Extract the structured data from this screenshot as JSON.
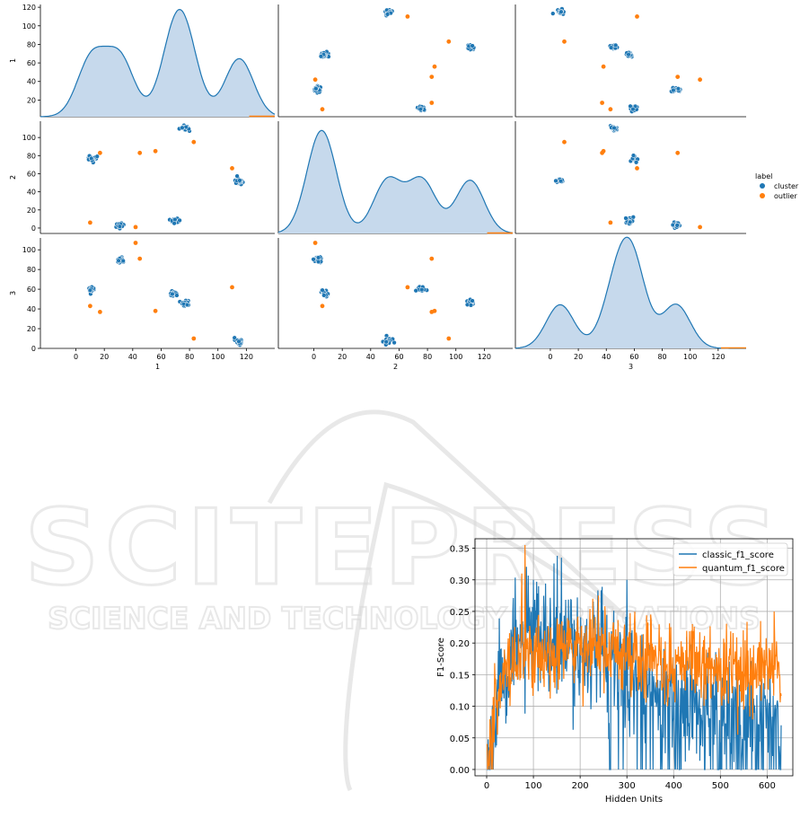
{
  "watermark": {
    "line1": "SCITEPRESS",
    "line2": "SCIENCE AND TECHNOLOGY PUBLICATIONS"
  },
  "colors": {
    "cluster": "#1f77b4",
    "outlier": "#ff7f0e",
    "kde_fill": "#c6d9ec",
    "kde_line": "#1f77b4",
    "classic": "#1f77b4",
    "quantum": "#ff7f0e"
  },
  "chart_data": [
    {
      "type": "scatter",
      "title": "",
      "variables": [
        "1",
        "2",
        "3"
      ],
      "ticks": [
        0,
        20,
        40,
        60,
        80,
        100,
        120
      ],
      "yticks_row1": [
        20,
        40,
        60,
        80,
        100,
        120
      ],
      "xlim": [
        -25,
        140
      ],
      "legend": {
        "title": "label",
        "entries": [
          "cluster",
          "outlier"
        ],
        "placement": "right"
      },
      "clusters": [
        {
          "v1": 11,
          "v2": 76,
          "v3": 60
        },
        {
          "v1": 31,
          "v2": 3,
          "v3": 90
        },
        {
          "v1": 69,
          "v2": 8,
          "v3": 56
        },
        {
          "v1": 77,
          "v2": 110,
          "v3": 46
        },
        {
          "v1": 115,
          "v2": 52,
          "v3": 7
        }
      ],
      "outliers": [
        {
          "v1": 10,
          "v2": 6,
          "v3": 43
        },
        {
          "v1": 17,
          "v2": 83,
          "v3": 37
        },
        {
          "v1": 42,
          "v2": 1,
          "v3": 107
        },
        {
          "v1": 45,
          "v2": 83,
          "v3": 91
        },
        {
          "v1": 56,
          "v2": 85,
          "v3": 38
        },
        {
          "v1": 83,
          "v2": 95,
          "v3": 10
        },
        {
          "v1": 110,
          "v2": 66,
          "v3": 62
        }
      ],
      "kde_peaks": [
        120,
        110,
        115
      ]
    },
    {
      "type": "line",
      "title": "",
      "xlabel": "Hidden Units",
      "ylabel": "F1-Score",
      "xlim": [
        -25,
        655
      ],
      "ylim": [
        -0.01,
        0.365
      ],
      "xticks": [
        0,
        100,
        200,
        300,
        400,
        500,
        600
      ],
      "yticks": [
        0.0,
        0.05,
        0.1,
        0.15,
        0.2,
        0.25,
        0.3,
        0.35
      ],
      "grid": true,
      "legend": {
        "placement": "top-right"
      },
      "x_start": 1,
      "x_end": 630,
      "series": [
        {
          "name": "classic_f1_score",
          "profile": [
            [
              0,
              0
            ],
            [
              8,
              0.05
            ],
            [
              30,
              0.16
            ],
            [
              80,
              0.2
            ],
            [
              150,
              0.2
            ],
            [
              220,
              0.19
            ],
            [
              300,
              0.15
            ],
            [
              400,
              0.1
            ],
            [
              500,
              0.09
            ],
            [
              630,
              0.08
            ]
          ],
          "spread": 0.045,
          "peaks": [
            [
              160,
              0.335
            ],
            [
              100,
              0.3
            ],
            [
              300,
              0.3
            ]
          ]
        },
        {
          "name": "quantum_f1_score",
          "profile": [
            [
              0,
              0
            ],
            [
              8,
              0.06
            ],
            [
              30,
              0.14
            ],
            [
              80,
              0.18
            ],
            [
              150,
              0.185
            ],
            [
              220,
              0.19
            ],
            [
              300,
              0.18
            ],
            [
              400,
              0.17
            ],
            [
              500,
              0.16
            ],
            [
              630,
              0.16
            ]
          ],
          "spread": 0.03,
          "peaks": [
            [
              82,
              0.355
            ],
            [
              75,
              0.31
            ],
            [
              615,
              0.25
            ]
          ]
        }
      ]
    }
  ]
}
